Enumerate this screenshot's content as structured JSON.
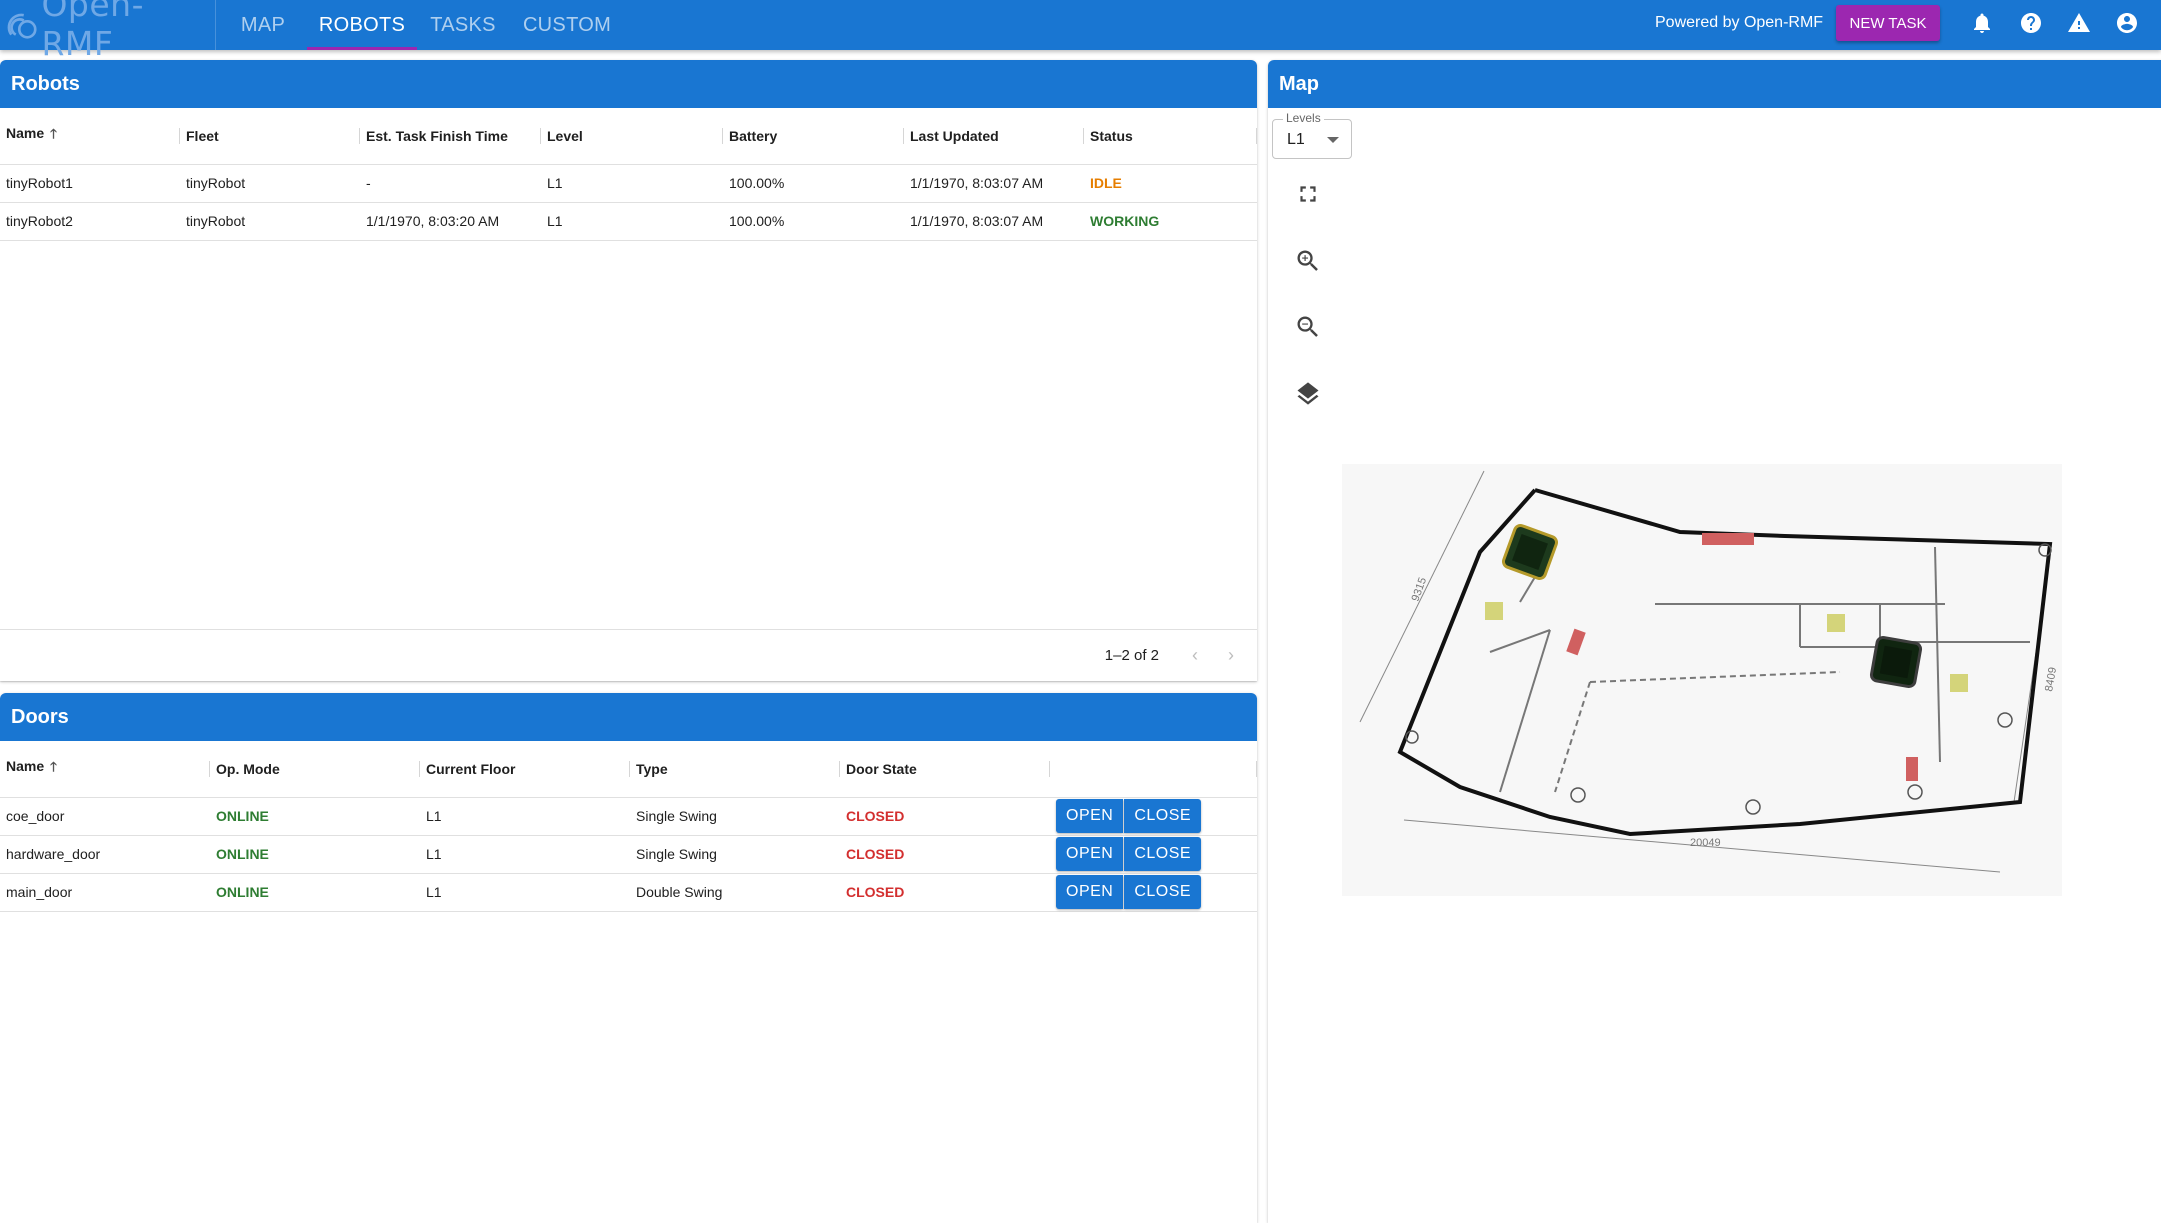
{
  "app": {
    "logo": "Open-RMF",
    "tabs": [
      {
        "label": "MAP"
      },
      {
        "label": "ROBOTS"
      },
      {
        "label": "TASKS"
      },
      {
        "label": "CUSTOM"
      }
    ],
    "active_tab": "ROBOTS",
    "powered_by": "Powered by Open-RMF",
    "new_task_label": "NEW TASK",
    "accent_color": "#1976d2",
    "purple_accent": "#9c27b0",
    "icons": [
      "bell-icon",
      "help-icon",
      "warning-icon",
      "account-icon"
    ]
  },
  "robots": {
    "title": "Robots",
    "columns": [
      "Name",
      "Fleet",
      "Est. Task Finish Time",
      "Level",
      "Battery",
      "Last Updated",
      "Status"
    ],
    "rows": [
      {
        "name": "tinyRobot1",
        "fleet": "tinyRobot",
        "finish": "-",
        "level": "L1",
        "battery": "100.00%",
        "updated": "1/1/1970, 8:03:07 AM",
        "status": "IDLE"
      },
      {
        "name": "tinyRobot2",
        "fleet": "tinyRobot",
        "finish": "1/1/1970, 8:03:20 AM",
        "level": "L1",
        "battery": "100.00%",
        "updated": "1/1/1970, 8:03:07 AM",
        "status": "WORKING"
      }
    ],
    "pagination": "1–2 of 2"
  },
  "doors": {
    "title": "Doors",
    "columns": [
      "Name",
      "Op. Mode",
      "Current Floor",
      "Type",
      "Door State",
      ""
    ],
    "rows": [
      {
        "name": "coe_door",
        "mode": "ONLINE",
        "floor": "L1",
        "type": "Single Swing",
        "state": "CLOSED",
        "open": "OPEN",
        "close": "CLOSE"
      },
      {
        "name": "hardware_door",
        "mode": "ONLINE",
        "floor": "L1",
        "type": "Single Swing",
        "state": "CLOSED",
        "open": "OPEN",
        "close": "CLOSE"
      },
      {
        "name": "main_door",
        "mode": "ONLINE",
        "floor": "L1",
        "type": "Double Swing",
        "state": "CLOSED",
        "open": "OPEN",
        "close": "CLOSE"
      }
    ]
  },
  "map": {
    "title": "Map",
    "levels_label": "Levels",
    "level_value": "L1",
    "controls": [
      "fullscreen-icon",
      "zoom-in-icon",
      "zoom-out-icon",
      "layers-icon"
    ],
    "dimension_labels": [
      "9315",
      "8409",
      "20049"
    ]
  }
}
